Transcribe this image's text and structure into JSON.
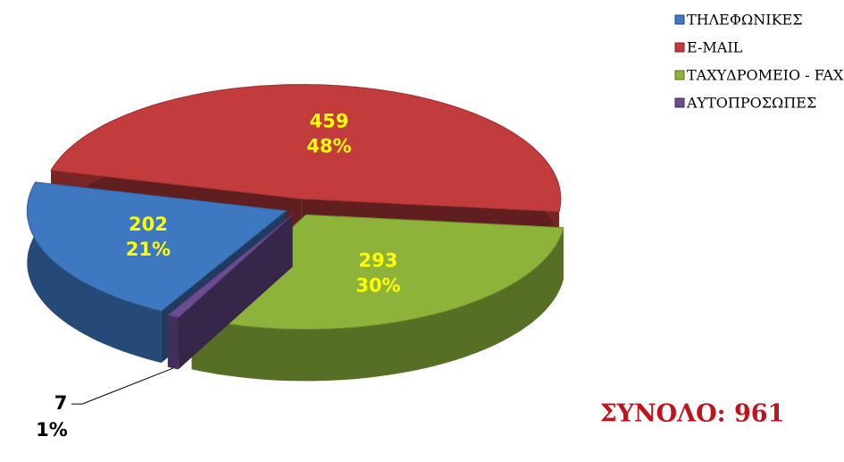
{
  "chart_data": {
    "type": "pie3d",
    "categories": [
      "ΤΗΛΕΦΩΝΙΚΕΣ",
      "E-MAIL",
      "ΤΑΧΥΔΡΟΜΕΙΟ - FAX",
      "ΑΥΤΟΠΡΟΣΩΠΕΣ"
    ],
    "values": [
      202,
      459,
      293,
      7
    ],
    "percentages": [
      21,
      48,
      30,
      1
    ],
    "percentage_labels": [
      "21%",
      "48%",
      "30%",
      "1%"
    ],
    "colors": [
      "#3d78c0",
      "#c23b3d",
      "#8db33b",
      "#6b4b91"
    ],
    "annotation": "ΣΥΝΟΛΟ: 961",
    "legend": "top-right"
  }
}
